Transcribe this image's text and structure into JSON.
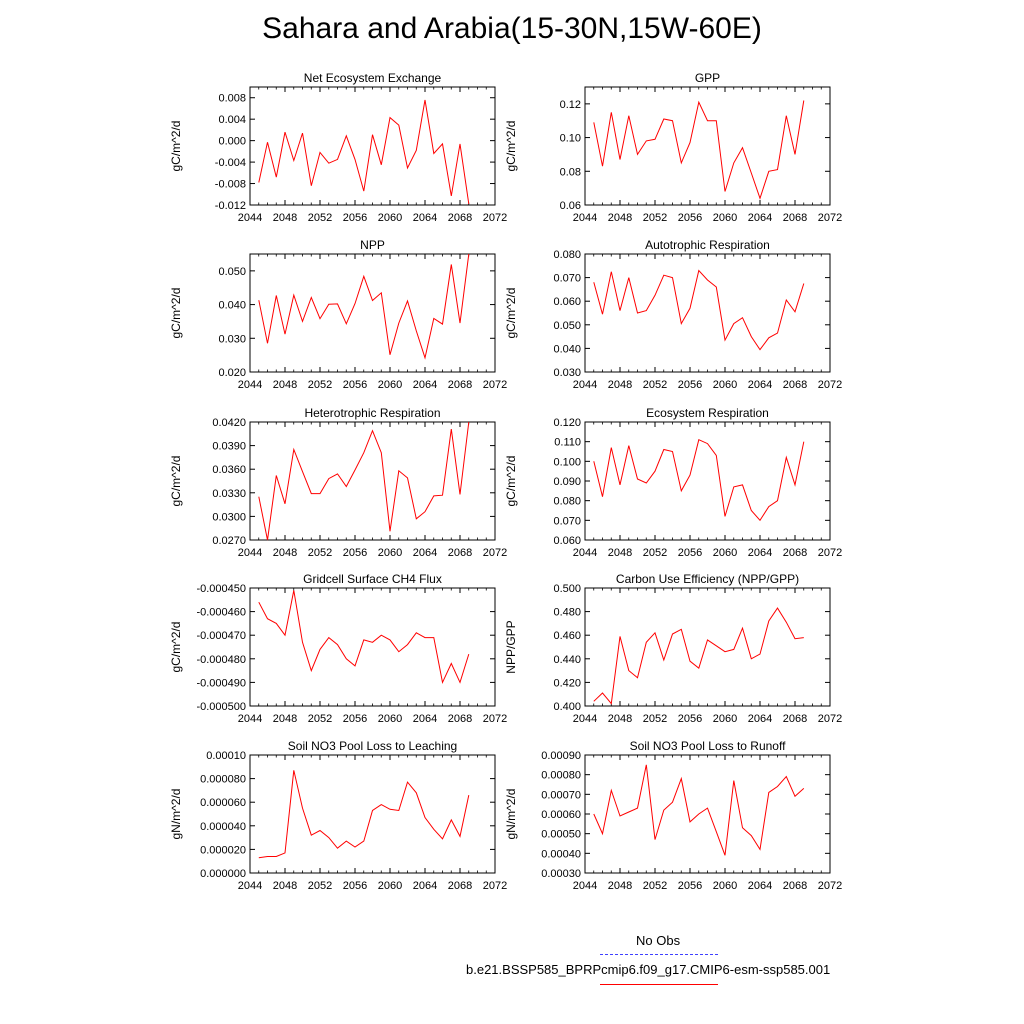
{
  "title": "Sahara and Arabia(15-30N,15W-60E)",
  "colors": {
    "series": "#ff0000",
    "obs": "#4040ff",
    "axis": "#000000"
  },
  "legend": {
    "obs_label": "No Obs",
    "model_label": "b.e21.BSSP585_BPRPcmip6.f09_g17.CMIP6-esm-ssp585.001"
  },
  "chart_data": [
    {
      "type": "line",
      "title": "Net Ecosystem Exchange",
      "ylabel": "gC/m^2/d",
      "xlim": [
        2044,
        2072
      ],
      "xticks": [
        2044,
        2048,
        2052,
        2056,
        2060,
        2064,
        2068,
        2072
      ],
      "ylim": [
        -0.012,
        0.01
      ],
      "yticks": [
        "-0.012",
        "-0.008",
        "-0.004",
        "0.000",
        "0.004",
        "0.008"
      ],
      "x": [
        2045,
        2046,
        2047,
        2048,
        2049,
        2050,
        2051,
        2052,
        2053,
        2054,
        2055,
        2056,
        2057,
        2058,
        2059,
        2060,
        2061,
        2062,
        2063,
        2064,
        2065,
        2066,
        2067,
        2068,
        2069
      ],
      "values": [
        -0.0078,
        -0.0003,
        -0.0068,
        0.0016,
        -0.0037,
        0.0014,
        -0.0084,
        -0.0022,
        -0.0042,
        -0.0035,
        0.0009,
        -0.0035,
        -0.0094,
        0.0011,
        -0.0045,
        0.0043,
        0.0029,
        -0.0051,
        -0.0018,
        0.0076,
        -0.0024,
        -0.0006,
        -0.0103,
        -0.0006,
        -0.0118
      ]
    },
    {
      "type": "line",
      "title": "GPP",
      "ylabel": "gC/m^2/d",
      "xlim": [
        2044,
        2072
      ],
      "xticks": [
        2044,
        2048,
        2052,
        2056,
        2060,
        2064,
        2068,
        2072
      ],
      "ylim": [
        0.06,
        0.13
      ],
      "yticks": [
        "0.06",
        "0.08",
        "0.10",
        "0.12"
      ],
      "x": [
        2045,
        2046,
        2047,
        2048,
        2049,
        2050,
        2051,
        2052,
        2053,
        2054,
        2055,
        2056,
        2057,
        2058,
        2059,
        2060,
        2061,
        2062,
        2063,
        2064,
        2065,
        2066,
        2067,
        2068,
        2069
      ],
      "values": [
        0.109,
        0.083,
        0.115,
        0.087,
        0.113,
        0.09,
        0.098,
        0.099,
        0.111,
        0.11,
        0.085,
        0.097,
        0.121,
        0.11,
        0.11,
        0.068,
        0.085,
        0.094,
        0.079,
        0.064,
        0.08,
        0.081,
        0.113,
        0.09,
        0.122
      ]
    },
    {
      "type": "line",
      "title": "NPP",
      "ylabel": "gC/m^2/d",
      "xlim": [
        2044,
        2072
      ],
      "xticks": [
        2044,
        2048,
        2052,
        2056,
        2060,
        2064,
        2068,
        2072
      ],
      "ylim": [
        0.02,
        0.055
      ],
      "yticks": [
        "0.020",
        "0.030",
        "0.040",
        "0.050"
      ],
      "x": [
        2045,
        2046,
        2047,
        2048,
        2049,
        2050,
        2051,
        2052,
        2053,
        2054,
        2055,
        2056,
        2057,
        2058,
        2059,
        2060,
        2061,
        2062,
        2063,
        2064,
        2065,
        2066,
        2067,
        2068,
        2069
      ],
      "values": [
        0.0413,
        0.0285,
        0.0427,
        0.0312,
        0.0428,
        0.035,
        0.0421,
        0.0358,
        0.0401,
        0.0402,
        0.0343,
        0.0403,
        0.0484,
        0.0412,
        0.0435,
        0.0251,
        0.0345,
        0.0411,
        0.0322,
        0.0242,
        0.0359,
        0.0342,
        0.0519,
        0.0345,
        0.055
      ]
    },
    {
      "type": "line",
      "title": "Autotrophic Respiration",
      "ylabel": "gC/m^2/d",
      "xlim": [
        2044,
        2072
      ],
      "xticks": [
        2044,
        2048,
        2052,
        2056,
        2060,
        2064,
        2068,
        2072
      ],
      "ylim": [
        0.03,
        0.08
      ],
      "yticks": [
        "0.030",
        "0.040",
        "0.050",
        "0.060",
        "0.070",
        "0.080"
      ],
      "x": [
        2045,
        2046,
        2047,
        2048,
        2049,
        2050,
        2051,
        2052,
        2053,
        2054,
        2055,
        2056,
        2057,
        2058,
        2059,
        2060,
        2061,
        2062,
        2063,
        2064,
        2065,
        2066,
        2067,
        2068,
        2069
      ],
      "values": [
        0.068,
        0.0545,
        0.0725,
        0.056,
        0.07,
        0.055,
        0.056,
        0.0625,
        0.071,
        0.07,
        0.0505,
        0.057,
        0.073,
        0.069,
        0.066,
        0.0435,
        0.0505,
        0.053,
        0.045,
        0.0395,
        0.0445,
        0.0465,
        0.0605,
        0.0555,
        0.0675
      ]
    },
    {
      "type": "line",
      "title": "Heterotrophic Respiration",
      "ylabel": "gC/m^2/d",
      "xlim": [
        2044,
        2072
      ],
      "xticks": [
        2044,
        2048,
        2052,
        2056,
        2060,
        2064,
        2068,
        2072
      ],
      "ylim": [
        0.027,
        0.042
      ],
      "yticks": [
        "0.0270",
        "0.0300",
        "0.0330",
        "0.0360",
        "0.0390",
        "0.0420"
      ],
      "x": [
        2045,
        2046,
        2047,
        2048,
        2049,
        2050,
        2051,
        2052,
        2053,
        2054,
        2055,
        2056,
        2057,
        2058,
        2059,
        2060,
        2061,
        2062,
        2063,
        2064,
        2065,
        2066,
        2067,
        2068,
        2069
      ],
      "values": [
        0.0325,
        0.027,
        0.0352,
        0.0316,
        0.0385,
        0.0357,
        0.0329,
        0.0329,
        0.0348,
        0.0354,
        0.0338,
        0.0359,
        0.0381,
        0.0409,
        0.0381,
        0.0281,
        0.0358,
        0.0349,
        0.0297,
        0.0306,
        0.0326,
        0.0327,
        0.0411,
        0.0328,
        0.042
      ]
    },
    {
      "type": "line",
      "title": "Ecosystem Respiration",
      "ylabel": "gC/m^2/d",
      "xlim": [
        2044,
        2072
      ],
      "xticks": [
        2044,
        2048,
        2052,
        2056,
        2060,
        2064,
        2068,
        2072
      ],
      "ylim": [
        0.06,
        0.12
      ],
      "yticks": [
        "0.060",
        "0.070",
        "0.080",
        "0.090",
        "0.100",
        "0.110",
        "0.120"
      ],
      "x": [
        2045,
        2046,
        2047,
        2048,
        2049,
        2050,
        2051,
        2052,
        2053,
        2054,
        2055,
        2056,
        2057,
        2058,
        2059,
        2060,
        2061,
        2062,
        2063,
        2064,
        2065,
        2066,
        2067,
        2068,
        2069
      ],
      "values": [
        0.1,
        0.082,
        0.107,
        0.088,
        0.108,
        0.091,
        0.089,
        0.095,
        0.106,
        0.105,
        0.085,
        0.093,
        0.111,
        0.109,
        0.103,
        0.072,
        0.087,
        0.088,
        0.075,
        0.07,
        0.077,
        0.08,
        0.102,
        0.088,
        0.11
      ]
    },
    {
      "type": "line",
      "title": "Gridcell Surface CH4 Flux",
      "ylabel": "gC/m^2/d",
      "xlim": [
        2044,
        2072
      ],
      "xticks": [
        2044,
        2048,
        2052,
        2056,
        2060,
        2064,
        2068,
        2072
      ],
      "ylim": [
        -0.0005,
        -0.00045
      ],
      "yticks": [
        "-0.000500",
        "-0.000490",
        "-0.000480",
        "-0.000470",
        "-0.000460",
        "-0.000450"
      ],
      "x": [
        2045,
        2046,
        2047,
        2048,
        2049,
        2050,
        2051,
        2052,
        2053,
        2054,
        2055,
        2056,
        2057,
        2058,
        2059,
        2060,
        2061,
        2062,
        2063,
        2064,
        2065,
        2066,
        2067,
        2068,
        2069
      ],
      "values": [
        -0.000456,
        -0.000463,
        -0.000465,
        -0.00047,
        -0.000451,
        -0.000473,
        -0.000485,
        -0.000476,
        -0.000471,
        -0.000474,
        -0.00048,
        -0.000483,
        -0.000472,
        -0.000473,
        -0.00047,
        -0.000472,
        -0.000477,
        -0.000474,
        -0.000469,
        -0.000471,
        -0.000471,
        -0.00049,
        -0.000482,
        -0.00049,
        -0.000478
      ]
    },
    {
      "type": "line",
      "title": "Carbon Use Efficiency (NPP/GPP)",
      "ylabel": "NPP/GPP",
      "xlim": [
        2044,
        2072
      ],
      "xticks": [
        2044,
        2048,
        2052,
        2056,
        2060,
        2064,
        2068,
        2072
      ],
      "ylim": [
        0.4,
        0.5
      ],
      "yticks": [
        "0.400",
        "0.420",
        "0.440",
        "0.460",
        "0.480",
        "0.500"
      ],
      "x": [
        2045,
        2046,
        2047,
        2048,
        2049,
        2050,
        2051,
        2052,
        2053,
        2054,
        2055,
        2056,
        2057,
        2058,
        2059,
        2060,
        2061,
        2062,
        2063,
        2064,
        2065,
        2066,
        2067,
        2068,
        2069
      ],
      "values": [
        0.404,
        0.411,
        0.402,
        0.459,
        0.43,
        0.424,
        0.454,
        0.462,
        0.439,
        0.461,
        0.465,
        0.438,
        0.432,
        0.456,
        0.451,
        0.446,
        0.448,
        0.466,
        0.44,
        0.444,
        0.472,
        0.483,
        0.471,
        0.457,
        0.458
      ]
    },
    {
      "type": "line",
      "title": "Soil NO3 Pool Loss to Leaching",
      "ylabel": "gN/m^2/d",
      "xlim": [
        2044,
        2072
      ],
      "xticks": [
        2044,
        2048,
        2052,
        2056,
        2060,
        2064,
        2068,
        2072
      ],
      "ylim": [
        0,
        0.0001
      ],
      "yticks": [
        "0.000000",
        "0.000020",
        "0.000040",
        "0.000060",
        "0.000080",
        "0.00010"
      ],
      "x": [
        2045,
        2046,
        2047,
        2048,
        2049,
        2050,
        2051,
        2052,
        2053,
        2054,
        2055,
        2056,
        2057,
        2058,
        2059,
        2060,
        2061,
        2062,
        2063,
        2064,
        2065,
        2066,
        2067,
        2068,
        2069
      ],
      "values": [
        1.3e-05,
        1.4e-05,
        1.4e-05,
        1.7e-05,
        8.7e-05,
        5.5e-05,
        3.2e-05,
        3.6e-05,
        3e-05,
        2.1e-05,
        2.7e-05,
        2.2e-05,
        2.7e-05,
        5.3e-05,
        5.8e-05,
        5.4e-05,
        5.3e-05,
        7.7e-05,
        6.8e-05,
        4.7e-05,
        3.7e-05,
        2.9e-05,
        4.5e-05,
        3.1e-05,
        6.6e-05
      ]
    },
    {
      "type": "line",
      "title": "Soil NO3 Pool Loss to Runoff",
      "ylabel": "gN/m^2/d",
      "xlim": [
        2044,
        2072
      ],
      "xticks": [
        2044,
        2048,
        2052,
        2056,
        2060,
        2064,
        2068,
        2072
      ],
      "ylim": [
        0.0003,
        0.0009
      ],
      "yticks": [
        "0.00030",
        "0.00040",
        "0.00050",
        "0.00060",
        "0.00070",
        "0.00080",
        "0.00090"
      ],
      "x": [
        2045,
        2046,
        2047,
        2048,
        2049,
        2050,
        2051,
        2052,
        2053,
        2054,
        2055,
        2056,
        2057,
        2058,
        2059,
        2060,
        2061,
        2062,
        2063,
        2064,
        2065,
        2066,
        2067,
        2068,
        2069
      ],
      "values": [
        0.0006,
        0.0005,
        0.00072,
        0.00059,
        0.00061,
        0.00063,
        0.00085,
        0.00047,
        0.00062,
        0.00066,
        0.00078,
        0.00056,
        0.0006,
        0.00063,
        0.00051,
        0.00039,
        0.00077,
        0.00053,
        0.00049,
        0.00042,
        0.00071,
        0.00074,
        0.00079,
        0.00069,
        0.00073
      ]
    }
  ]
}
